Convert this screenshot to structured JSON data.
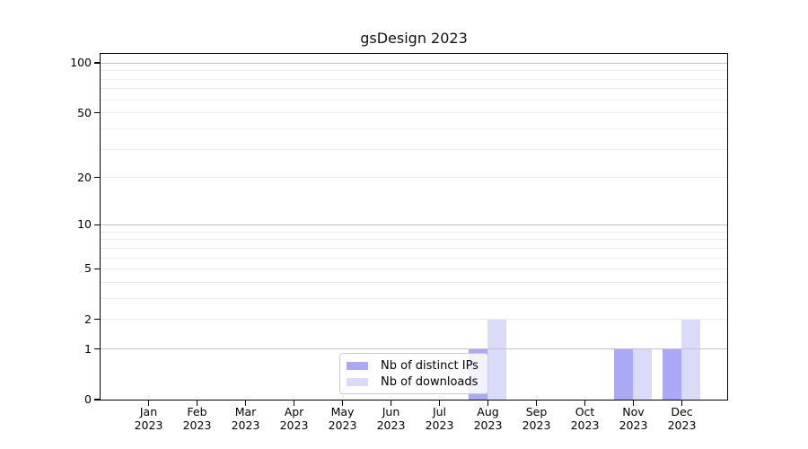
{
  "chart_data": {
    "type": "bar",
    "title": "gsDesign 2023",
    "categories": [
      {
        "month": "Jan",
        "year": "2023"
      },
      {
        "month": "Feb",
        "year": "2023"
      },
      {
        "month": "Mar",
        "year": "2023"
      },
      {
        "month": "Apr",
        "year": "2023"
      },
      {
        "month": "May",
        "year": "2023"
      },
      {
        "month": "Jun",
        "year": "2023"
      },
      {
        "month": "Jul",
        "year": "2023"
      },
      {
        "month": "Aug",
        "year": "2023"
      },
      {
        "month": "Sep",
        "year": "2023"
      },
      {
        "month": "Oct",
        "year": "2023"
      },
      {
        "month": "Nov",
        "year": "2023"
      },
      {
        "month": "Dec",
        "year": "2023"
      }
    ],
    "series": [
      {
        "name": "Nb of distinct IPs",
        "color": "#a9a9f7",
        "values": [
          0,
          0,
          0,
          0,
          0,
          0,
          0,
          1,
          0,
          0,
          1,
          1
        ]
      },
      {
        "name": "Nb of downloads",
        "color": "#dadaf9",
        "values": [
          0,
          0,
          0,
          0,
          0,
          0,
          0,
          2,
          0,
          0,
          1,
          2
        ]
      }
    ],
    "y_axis": {
      "scale": "log1p",
      "ticks": [
        0,
        1,
        2,
        5,
        10,
        20,
        50,
        100
      ],
      "minor_ticks": [
        3,
        4,
        6,
        7,
        8,
        9,
        30,
        40,
        60,
        70,
        80,
        90
      ],
      "major_grid_values": [
        1,
        10,
        100
      ],
      "ylim": [
        0,
        113
      ],
      "grid": true
    },
    "legend": {
      "position": "bottom-center"
    },
    "colors": {
      "major_grid": "#c4c4c4",
      "minor_grid": "#ececec",
      "axis": "#000000",
      "background": "#ffffff"
    }
  }
}
